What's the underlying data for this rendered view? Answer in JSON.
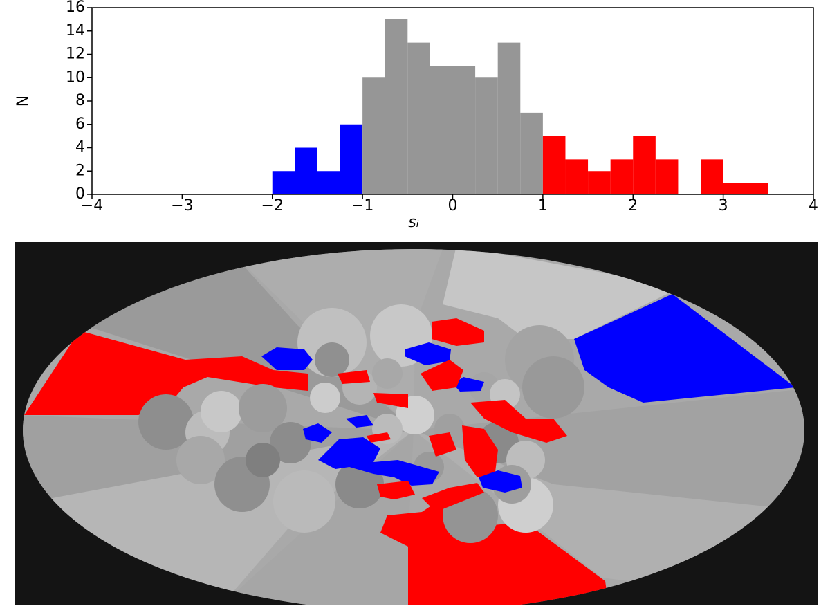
{
  "chart_data": {
    "type": "histogram",
    "xlabel": "sᵢ",
    "ylabel": "N",
    "xlim": [
      -4,
      4
    ],
    "ylim": [
      0,
      16
    ],
    "xticks": [
      {
        "value": -4,
        "label": "−4"
      },
      {
        "value": -3,
        "label": "−3"
      },
      {
        "value": -2,
        "label": "−2"
      },
      {
        "value": -1,
        "label": "−1"
      },
      0,
      1,
      2,
      3,
      4
    ],
    "yticks": [
      0,
      2,
      4,
      6,
      8,
      10,
      12,
      14,
      16
    ],
    "series": [
      {
        "color": "#0000ff",
        "bins": [
          -2,
          -1.75,
          -1.5,
          -1.25,
          -1
        ],
        "values": [
          2,
          4,
          2,
          6
        ]
      },
      {
        "color": "#969696",
        "bins": [
          -1,
          -0.75,
          -0.5,
          -0.25,
          0,
          0.25,
          0.5,
          0.75,
          1
        ],
        "values": [
          10,
          15,
          13,
          11,
          11,
          10,
          13,
          7
        ]
      },
      {
        "color": "#ff0000",
        "bins": [
          1,
          1.25,
          1.5,
          1.75,
          2,
          2.25,
          2.5,
          2.75,
          3,
          3.25,
          3.5
        ],
        "values": [
          5,
          3,
          2,
          3,
          5,
          3,
          0,
          3,
          1,
          1
        ]
      }
    ]
  }
}
